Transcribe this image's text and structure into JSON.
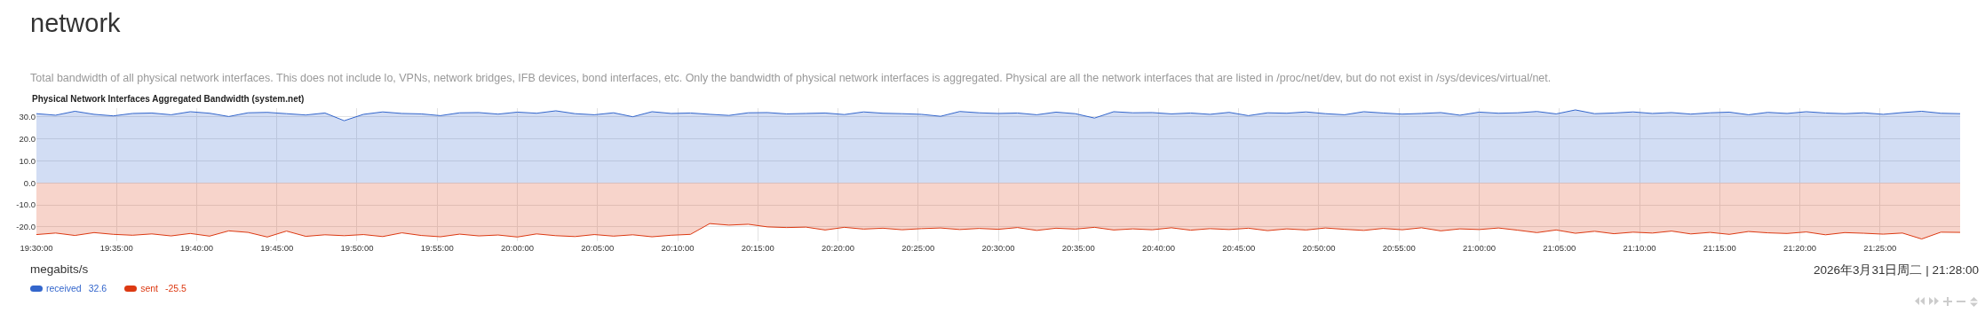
{
  "chart_data": {
    "type": "area",
    "title": "network",
    "subtitle": "Total bandwidth of all physical network interfaces. This does not include lo, VPNs, network bridges, IFB devices, bond interfaces, etc. Only the bandwidth of physical network interfaces is aggregated. Physical are all the network interfaces that are listed in /proc/net/dev, but do not exist in /sys/devices/virtual/net.",
    "annotations": [
      "Physical Network Interfaces Aggregated Bandwidth (system.net)",
      "megabits/s",
      "2026年3月31日周二 | 21:28:00",
      "32.6",
      "-25.5"
    ],
    "x": [
      19.5,
      19.52,
      19.54,
      19.56,
      19.58,
      19.6,
      19.62,
      19.64,
      19.66,
      19.68,
      19.7,
      19.72,
      19.74,
      19.76,
      19.78,
      19.8,
      19.82,
      19.84,
      19.86,
      19.88,
      19.9,
      19.92,
      19.94,
      19.96,
      19.98,
      20,
      20.02,
      20.04,
      20.06,
      20.08,
      20.1,
      20.12,
      20.14,
      20.16,
      20.18,
      20.2,
      20.22,
      20.24,
      20.26,
      20.28,
      20.3,
      20.32,
      20.34,
      20.36,
      20.38,
      20.4,
      20.42,
      20.44,
      20.46,
      20.48,
      20.5,
      20.52,
      20.54,
      20.56,
      20.58,
      20.6,
      20.62,
      20.64,
      20.66,
      20.68,
      20.7,
      20.72,
      20.74,
      20.76,
      20.78,
      20.8,
      20.82,
      20.84,
      20.86,
      20.88,
      20.9,
      20.92,
      20.94,
      20.96,
      20.98,
      21,
      21.02,
      21.04,
      21.06,
      21.08,
      21.1,
      21.12,
      21.14,
      21.16,
      21.18,
      21.2,
      21.22,
      21.24,
      21.26,
      21.28,
      21.3,
      21.32,
      21.34,
      21.36,
      21.38,
      21.4,
      21.42,
      21.44,
      21.46,
      21.48,
      21.5
    ],
    "series": [
      {
        "name": "received",
        "color": "#3366cc",
        "values": [
          31.5,
          30.8,
          32.6,
          31.2,
          30.5,
          31.6,
          31.8,
          31.0,
          32.4,
          31.7,
          30.2,
          31.9,
          32.1,
          31.5,
          30.9,
          31.8,
          28.3,
          31.2,
          32.3,
          31.6,
          31.4,
          30.6,
          31.9,
          32.0,
          31.3,
          32.2,
          31.7,
          32.8,
          31.5,
          31.0,
          31.9,
          30.1,
          32.4,
          31.6,
          31.8,
          31.2,
          30.7,
          31.9,
          32.0,
          31.4,
          31.6,
          31.8,
          31.1,
          32.3,
          31.7,
          31.5,
          31.2,
          30.3,
          32.5,
          31.9,
          31.6,
          31.8,
          31.0,
          32.2,
          31.5,
          29.5,
          32.4,
          31.9,
          32.0,
          31.4,
          31.8,
          31.2,
          32.1,
          30.6,
          31.9,
          31.7,
          32.3,
          31.5,
          31.0,
          32.4,
          31.8,
          31.3,
          31.6,
          32.0,
          30.8,
          32.2,
          31.7,
          31.9,
          32.5,
          31.4,
          33.2,
          31.5,
          31.8,
          32.3,
          31.6,
          32.0,
          31.3,
          31.9,
          32.2,
          31.0,
          32.1,
          31.6,
          32.4,
          31.8,
          31.5,
          31.9,
          31.2,
          32.0,
          32.6,
          31.7,
          31.5
        ]
      },
      {
        "name": "sent",
        "color": "#dc3912",
        "values": [
          -23.5,
          -22.8,
          -23.9,
          -22.6,
          -23.4,
          -23.8,
          -23.2,
          -24.1,
          -23.0,
          -24.2,
          -21.8,
          -22.5,
          -24.6,
          -21.9,
          -24.3,
          -23.6,
          -24.0,
          -23.5,
          -24.4,
          -22.7,
          -23.9,
          -24.5,
          -23.3,
          -24.1,
          -23.7,
          -24.6,
          -23.2,
          -24.0,
          -24.4,
          -23.5,
          -24.2,
          -23.6,
          -24.5,
          -23.8,
          -23.4,
          -18.5,
          -19.2,
          -18.8,
          -20.0,
          -20.3,
          -20.1,
          -21.4,
          -20.2,
          -21.0,
          -20.6,
          -21.3,
          -20.8,
          -20.5,
          -21.2,
          -20.7,
          -21.1,
          -20.3,
          -21.6,
          -20.6,
          -21.0,
          -20.2,
          -21.4,
          -20.9,
          -21.3,
          -20.4,
          -21.5,
          -20.8,
          -21.2,
          -20.6,
          -21.7,
          -20.9,
          -21.4,
          -20.5,
          -21.1,
          -21.6,
          -20.7,
          -21.3,
          -20.4,
          -21.8,
          -20.9,
          -21.2,
          -20.5,
          -21.5,
          -22.6,
          -21.4,
          -22.9,
          -22.0,
          -23.1,
          -22.4,
          -22.8,
          -21.9,
          -23.2,
          -22.5,
          -23.4,
          -22.1,
          -22.7,
          -23.0,
          -22.3,
          -23.6,
          -22.6,
          -22.9,
          -23.3,
          -22.8,
          -25.5,
          -22.4,
          -22.5
        ]
      }
    ],
    "xlim": [
      19.5,
      21.5
    ],
    "xticks": [
      {
        "value": 19.5,
        "label": "19:30:00"
      },
      {
        "value": 19.5833,
        "label": "19:35:00"
      },
      {
        "value": 19.6667,
        "label": "19:40:00"
      },
      {
        "value": 19.75,
        "label": "19:45:00"
      },
      {
        "value": 19.8333,
        "label": "19:50:00"
      },
      {
        "value": 19.9167,
        "label": "19:55:00"
      },
      {
        "value": 20,
        "label": "20:00:00"
      },
      {
        "value": 20.0833,
        "label": "20:05:00"
      },
      {
        "value": 20.1667,
        "label": "20:10:00"
      },
      {
        "value": 20.25,
        "label": "20:15:00"
      },
      {
        "value": 20.3333,
        "label": "20:20:00"
      },
      {
        "value": 20.4167,
        "label": "20:25:00"
      },
      {
        "value": 20.5,
        "label": "20:30:00"
      },
      {
        "value": 20.5833,
        "label": "20:35:00"
      },
      {
        "value": 20.6667,
        "label": "20:40:00"
      },
      {
        "value": 20.75,
        "label": "20:45:00"
      },
      {
        "value": 20.8333,
        "label": "20:50:00"
      },
      {
        "value": 20.9167,
        "label": "20:55:00"
      },
      {
        "value": 21,
        "label": "21:00:00"
      },
      {
        "value": 21.0833,
        "label": "21:05:00"
      },
      {
        "value": 21.1667,
        "label": "21:10:00"
      },
      {
        "value": 21.25,
        "label": "21:15:00"
      },
      {
        "value": 21.3333,
        "label": "21:20:00"
      },
      {
        "value": 21.4167,
        "label": "21:25:00"
      }
    ],
    "ylim": [
      -26.5,
      34
    ],
    "yticks": [
      {
        "value": -20,
        "label": "-20.0"
      },
      {
        "value": -10,
        "label": "-10.0"
      },
      {
        "value": 0,
        "label": "0.0"
      },
      {
        "value": 10,
        "label": "10.0"
      },
      {
        "value": 20,
        "label": "20.0"
      },
      {
        "value": 30,
        "label": "30.0"
      }
    ],
    "grid": true,
    "legend": "bottom left"
  }
}
